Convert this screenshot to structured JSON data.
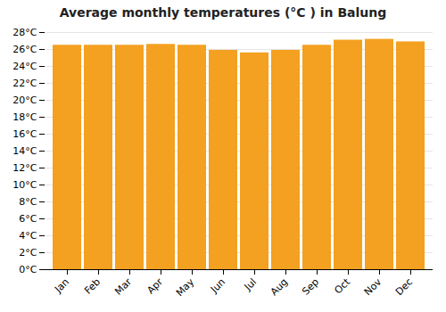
{
  "chart_data": {
    "type": "bar",
    "title": "Average monthly temperatures (°C ) in Balung",
    "categories": [
      "Jan",
      "Feb",
      "Mar",
      "Apr",
      "May",
      "Jun",
      "Jul",
      "Aug",
      "Sep",
      "Oct",
      "Nov",
      "Dec"
    ],
    "values": [
      26.5,
      26.5,
      26.5,
      26.6,
      26.5,
      25.9,
      25.6,
      25.9,
      26.5,
      27.1,
      27.2,
      26.9
    ],
    "color": "#F4A020",
    "ylim": [
      0,
      28
    ],
    "yticks": [
      {
        "value": 0,
        "label": "0°C"
      },
      {
        "value": 2,
        "label": "2°C"
      },
      {
        "value": 4,
        "label": "4°C"
      },
      {
        "value": 6,
        "label": "6°C"
      },
      {
        "value": 8,
        "label": "8°C"
      },
      {
        "value": 10,
        "label": "10°C"
      },
      {
        "value": 12,
        "label": "12°C"
      },
      {
        "value": 14,
        "label": "14°C"
      },
      {
        "value": 16,
        "label": "16°C"
      },
      {
        "value": 18,
        "label": "18°C"
      },
      {
        "value": 20,
        "label": "20°C"
      },
      {
        "value": 22,
        "label": "22°C"
      },
      {
        "value": 24,
        "label": "24°C"
      },
      {
        "value": 26,
        "label": "26°C"
      },
      {
        "value": 28,
        "label": "28°C"
      }
    ],
    "grid": true
  }
}
